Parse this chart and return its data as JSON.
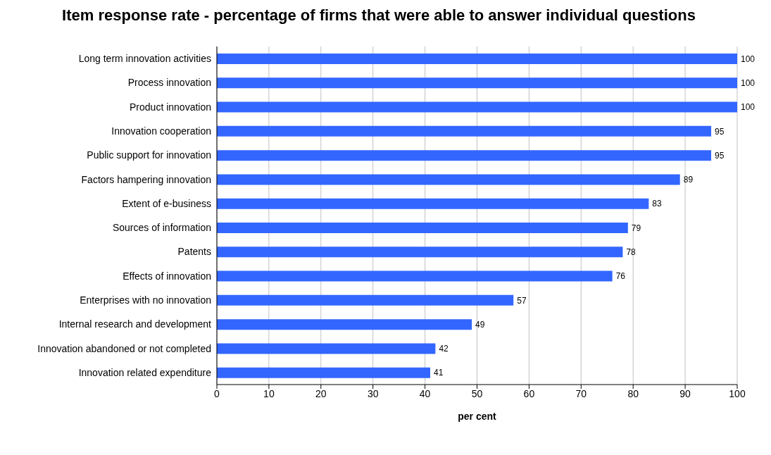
{
  "chart_data": {
    "type": "bar",
    "title": "Item response rate - percentage of firms that were able to answer individual questions",
    "xlabel": "per cent",
    "orientation": "horizontal",
    "categories": [
      "Long term innovation activities",
      "Process innovation",
      "Product innovation",
      "Innovation cooperation",
      "Public support for innovation",
      "Factors hampering innovation",
      "Extent of e-business",
      "Sources of information",
      "Patents",
      "Effects of innovation",
      "Enterprises with no innovation",
      "Internal research and development",
      "Innovation abandoned or not completed",
      "Innovation related expenditure"
    ],
    "values": [
      100,
      100,
      100,
      95,
      95,
      89,
      83,
      79,
      78,
      76,
      57,
      49,
      42,
      41
    ],
    "color": "#3366ff",
    "xlim": [
      0,
      100
    ],
    "xticks": [
      0,
      10,
      20,
      30,
      40,
      50,
      60,
      70,
      80,
      90,
      100
    ],
    "grid": "x",
    "data_labels": true
  }
}
